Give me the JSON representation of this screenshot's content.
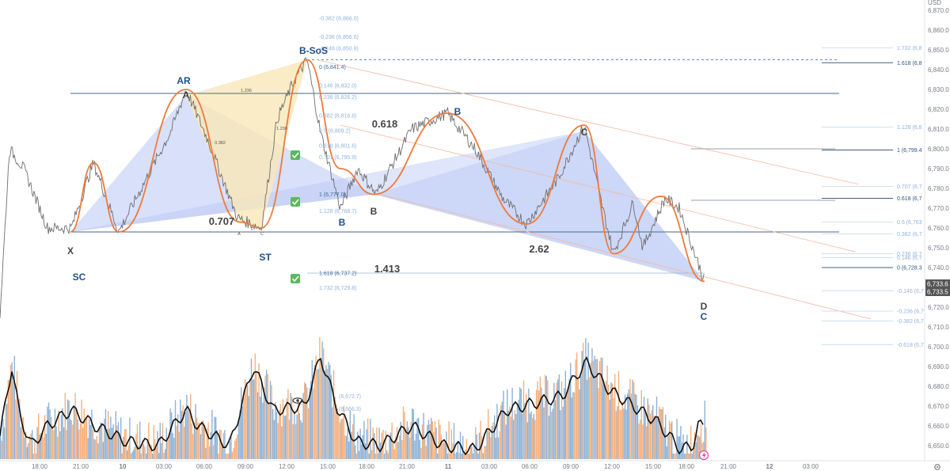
{
  "chart_data": {
    "type": "line",
    "title": "",
    "currency": "USD",
    "ylim": [
      6644,
      6878
    ],
    "y_ticks": [
      6650,
      6660,
      6670,
      6680,
      6690,
      6700,
      6710,
      6720,
      6730,
      6740,
      6750,
      6760,
      6770,
      6780,
      6790,
      6800,
      6810,
      6820,
      6830,
      6840,
      6850,
      6860,
      6870
    ],
    "x_ticks": [
      "18:00",
      "21:00",
      "10",
      "03:00",
      "06:00",
      "09:00",
      "12:00",
      "15:00",
      "18:00",
      "21:00",
      "11",
      "03:00",
      "06:00",
      "09:00",
      "12:00",
      "15:00",
      "18:00",
      "21:00",
      "12",
      "03:00"
    ],
    "price_tags": [
      "6,733.6",
      "6,733.5"
    ],
    "price_series_keypoints": [
      [
        0,
        6716
      ],
      [
        12,
        6800
      ],
      [
        30,
        6790
      ],
      [
        60,
        6760
      ],
      [
        90,
        6760
      ],
      [
        118,
        6793
      ],
      [
        150,
        6758
      ],
      [
        185,
        6785
      ],
      [
        215,
        6808
      ],
      [
        235,
        6830
      ],
      [
        262,
        6805
      ],
      [
        300,
        6765
      ],
      [
        330,
        6760
      ],
      [
        350,
        6815
      ],
      [
        372,
        6835
      ],
      [
        388,
        6845
      ],
      [
        405,
        6808
      ],
      [
        430,
        6770
      ],
      [
        452,
        6790
      ],
      [
        475,
        6777
      ],
      [
        520,
        6810
      ],
      [
        565,
        6818
      ],
      [
        600,
        6800
      ],
      [
        635,
        6775
      ],
      [
        665,
        6762
      ],
      [
        705,
        6785
      ],
      [
        738,
        6812
      ],
      [
        760,
        6772
      ],
      [
        775,
        6747
      ],
      [
        800,
        6773
      ],
      [
        812,
        6750
      ],
      [
        840,
        6775
      ],
      [
        858,
        6770
      ],
      [
        875,
        6750
      ],
      [
        890,
        6733
      ]
    ],
    "volume_series_keypoints": [
      [
        0,
        6655
      ],
      [
        15,
        6690
      ],
      [
        25,
        6665
      ],
      [
        40,
        6650
      ],
      [
        60,
        6660
      ],
      [
        90,
        6668
      ],
      [
        120,
        6660
      ],
      [
        160,
        6652
      ],
      [
        200,
        6650
      ],
      [
        235,
        6668
      ],
      [
        250,
        6660
      ],
      [
        290,
        6650
      ],
      [
        320,
        6690
      ],
      [
        345,
        6668
      ],
      [
        385,
        6670
      ],
      [
        405,
        6695
      ],
      [
        425,
        6670
      ],
      [
        450,
        6652
      ],
      [
        480,
        6650
      ],
      [
        520,
        6660
      ],
      [
        560,
        6650
      ],
      [
        600,
        6648
      ],
      [
        640,
        6668
      ],
      [
        680,
        6672
      ],
      [
        710,
        6675
      ],
      [
        740,
        6692
      ],
      [
        770,
        6678
      ],
      [
        800,
        6670
      ],
      [
        830,
        6662
      ],
      [
        860,
        6648
      ],
      [
        875,
        6650
      ],
      [
        882,
        6660
      ],
      [
        890,
        6660
      ]
    ],
    "swing_points": [
      {
        "label": "X",
        "x": "21:00 (9th)",
        "y": 6758
      },
      {
        "label": "A",
        "x": "04:30 (10th)",
        "y": 6827
      },
      {
        "label": "B",
        "x": "16:30 (10th)",
        "y": 6777
      },
      {
        "label": "C",
        "x": "09:30 (11th)",
        "y": 6809
      },
      {
        "label": "D",
        "x": "19:00 (11th)",
        "y": 6733
      }
    ],
    "ratios": [
      "0.707",
      "0.618",
      "1.413",
      "2.62"
    ],
    "wyckoff_labels": [
      "SC",
      "AR",
      "ST",
      "B-SoS"
    ],
    "fib_levels": {
      "left": [
        "-0.382 (6,866.0)",
        "-0.236 (6,856.6)",
        "-0.146 (6,850.8)",
        "0 (6,841.4)",
        "0.146 (6,832.0)",
        "0.236 (6,826.2)",
        "0.382 (6,816.8)",
        "0.5 (6,809.2)",
        "0.618 (6,801.6)",
        "0.707 (6,795.9)",
        "1 (6,777.0)",
        "1.128 (6,768.7)",
        "1.618 (6,737.2)",
        "1.732 (6,729.8)"
      ],
      "right": [
        "1.732 (6,8",
        "1.618 (6,8",
        "1.128 (6,8",
        "1 (6,799.4",
        "0.707 (6,7",
        "0.618 (6,7",
        "0.5 (6,763",
        "0.382 (6,7",
        "0.236 (6,7",
        "0.146 (6,7",
        "0 (6,728.3",
        "-0.146 (6,7",
        "-0.236 (6,7",
        "-0.382 (6,7",
        "-0.618 (6,7"
      ]
    },
    "small_labels": [
      "1.236",
      "0.382",
      "1.236",
      "1",
      "A",
      "C"
    ],
    "colors": {
      "price": "#6e6e6e",
      "swing_curve": "#ef7a3a",
      "harmonic_fill": "#b8c6f5",
      "harmonic_yellow": "#f9e7b8",
      "volume_blue": "#7aa4cf",
      "volume_orange": "#f4a266",
      "hline": "#4a6a8a",
      "fib_text": "#8fb3d9",
      "fib_line": "#cfe0f0",
      "check_green": "#5cb85c",
      "price_tag": "#555555"
    }
  },
  "ui": {
    "currency_label": "USD",
    "settings_icon": "gear-icon",
    "lightning_icon": "lightning-icon",
    "eye_icon": "eye-icon"
  }
}
